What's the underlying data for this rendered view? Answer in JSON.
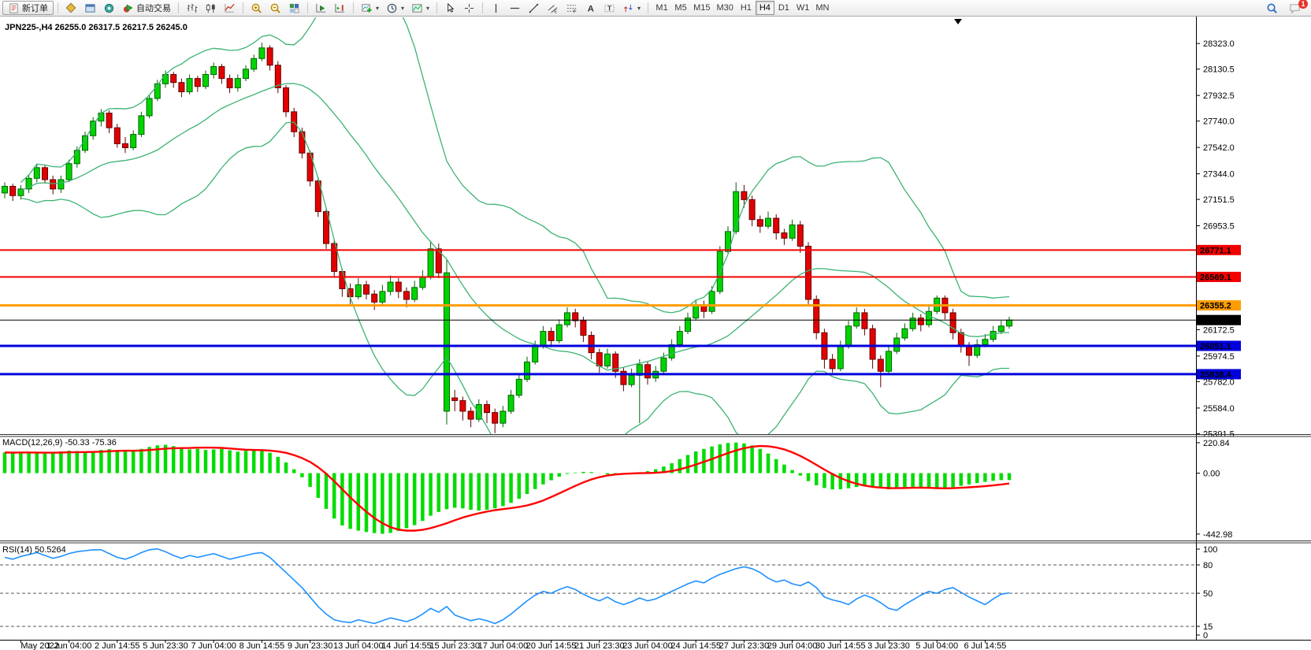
{
  "toolbar": {
    "new_order": {
      "label": "新订单"
    },
    "groups": [
      {
        "items": [
          {
            "icon": "market-watch"
          },
          {
            "icon": "terminal"
          },
          {
            "icon": "signal"
          },
          {
            "icon": "auto-trading",
            "label": "自动交易"
          }
        ]
      },
      {
        "items": [
          {
            "icon": "bar-chart"
          },
          {
            "icon": "candle-chart"
          },
          {
            "icon": "line-chart"
          }
        ]
      },
      {
        "items": [
          {
            "icon": "zoom-in"
          },
          {
            "icon": "zoom-out"
          },
          {
            "icon": "tile-windows"
          }
        ]
      },
      {
        "items": [
          {
            "icon": "auto-scroll"
          },
          {
            "icon": "chart-shift"
          }
        ]
      },
      {
        "items": [
          {
            "icon": "indicators",
            "dropdown": true
          },
          {
            "icon": "periods",
            "dropdown": true
          },
          {
            "icon": "templates",
            "dropdown": true
          }
        ]
      },
      {
        "items": [
          {
            "icon": "cursor"
          },
          {
            "icon": "crosshair"
          }
        ]
      },
      {
        "items": [
          {
            "icon": "vertical-line"
          },
          {
            "icon": "horizontal-line"
          },
          {
            "icon": "trend-line"
          },
          {
            "icon": "equidistant-channel"
          },
          {
            "icon": "fibonacci"
          },
          {
            "icon": "text"
          },
          {
            "icon": "text-label"
          },
          {
            "icon": "arrows",
            "dropdown": true
          }
        ]
      }
    ],
    "timeframes": [
      "M1",
      "M5",
      "M15",
      "M30",
      "H1",
      "H4",
      "D1",
      "W1",
      "MN"
    ],
    "active_timeframe": "H4",
    "notifications": {
      "count": "1"
    }
  },
  "chart": {
    "title": "JPN225-,H4  26255.0 26317.5 26217.5 26245.0"
  },
  "chart_data": {
    "type": "candlestick",
    "symbol": "JPN225-",
    "timeframe": "H4",
    "ohlc": {
      "open": 26255.0,
      "high": 26317.5,
      "low": 26217.5,
      "close": 26245.0
    },
    "x_labels": [
      "May 2022",
      "1 Jun 04:00",
      "2 Jun 14:55",
      "5 Jun 23:30",
      "7 Jun 04:00",
      "8 Jun 14:55",
      "9 Jun 23:30",
      "13 Jun 04:00",
      "14 Jun 14:55",
      "15 Jun 23:30",
      "17 Jun 04:00",
      "20 Jun 14:55",
      "21 Jun 23:30",
      "23 Jun 04:00",
      "24 Jun 14:55",
      "27 Jun 23:30",
      "29 Jun 04:00",
      "30 Jun 14:55",
      "3 Jul 23:30",
      "5 Jul 04:00",
      "6 Jul 14:55"
    ],
    "x_label_step": 6,
    "price_ticks": [
      28323.0,
      28130.5,
      27932.5,
      27740.0,
      27542.0,
      27344.0,
      27151.5,
      26953.5,
      26172.5,
      25974.5,
      25782.0,
      25584.0,
      25391.5
    ],
    "levels": [
      {
        "price": 26771.1,
        "color": "#f20000",
        "width": 2
      },
      {
        "price": 26569.1,
        "color": "#f20000",
        "width": 2
      },
      {
        "price": 26355.2,
        "color": "#ff9d00",
        "width": 3
      },
      {
        "price": 26245.0,
        "color": "#000000",
        "width": 1,
        "current": true
      },
      {
        "price": 26051.1,
        "color": "#0000dd",
        "width": 3
      },
      {
        "price": 25838.4,
        "color": "#0000dd",
        "width": 3
      }
    ],
    "candle_colors": {
      "up_fill": "#00d400",
      "up_border": "#006400",
      "down_fill": "#e30000",
      "down_border": "#600000"
    },
    "bollinger": {
      "period": 20,
      "deviation": 2,
      "color": "#3CB371"
    },
    "candles": [
      [
        27200,
        27280,
        27160,
        27250
      ],
      [
        27250,
        27270,
        27140,
        27180
      ],
      [
        27180,
        27260,
        27150,
        27230
      ],
      [
        27230,
        27340,
        27200,
        27310
      ],
      [
        27310,
        27420,
        27280,
        27390
      ],
      [
        27390,
        27410,
        27270,
        27300
      ],
      [
        27300,
        27330,
        27190,
        27230
      ],
      [
        27230,
        27330,
        27200,
        27300
      ],
      [
        27300,
        27450,
        27280,
        27420
      ],
      [
        27420,
        27550,
        27390,
        27520
      ],
      [
        27520,
        27660,
        27500,
        27630
      ],
      [
        27630,
        27770,
        27600,
        27740
      ],
      [
        27740,
        27830,
        27700,
        27800
      ],
      [
        27800,
        27820,
        27650,
        27690
      ],
      [
        27690,
        27720,
        27540,
        27570
      ],
      [
        27570,
        27620,
        27500,
        27540
      ],
      [
        27540,
        27670,
        27520,
        27640
      ],
      [
        27640,
        27810,
        27620,
        27780
      ],
      [
        27780,
        27940,
        27760,
        27910
      ],
      [
        27910,
        28050,
        27890,
        28020
      ],
      [
        28020,
        28120,
        27990,
        28090
      ],
      [
        28090,
        28110,
        27990,
        28030
      ],
      [
        28030,
        28060,
        27920,
        27960
      ],
      [
        27960,
        28090,
        27940,
        28060
      ],
      [
        28060,
        28080,
        27960,
        28000
      ],
      [
        28000,
        28120,
        27980,
        28090
      ],
      [
        28090,
        28180,
        28060,
        28150
      ],
      [
        28150,
        28170,
        28020,
        28060
      ],
      [
        28060,
        28090,
        27950,
        27990
      ],
      [
        27990,
        28090,
        27960,
        28060
      ],
      [
        28060,
        28160,
        28040,
        28130
      ],
      [
        28130,
        28240,
        28110,
        28210
      ],
      [
        28210,
        28330,
        28190,
        28290
      ],
      [
        28290,
        28310,
        28120,
        28160
      ],
      [
        28160,
        28190,
        27950,
        27990
      ],
      [
        27990,
        28010,
        27770,
        27810
      ],
      [
        27810,
        27840,
        27620,
        27660
      ],
      [
        27660,
        27690,
        27460,
        27500
      ],
      [
        27500,
        27520,
        27250,
        27290
      ],
      [
        27290,
        27320,
        27020,
        27060
      ],
      [
        27060,
        27090,
        26780,
        26820
      ],
      [
        26820,
        26850,
        26570,
        26610
      ],
      [
        26610,
        26630,
        26420,
        26480
      ],
      [
        26480,
        26520,
        26360,
        26420
      ],
      [
        26420,
        26560,
        26400,
        26510
      ],
      [
        26510,
        26540,
        26400,
        26440
      ],
      [
        26440,
        26470,
        26320,
        26380
      ],
      [
        26380,
        26510,
        26360,
        26460
      ],
      [
        26460,
        26580,
        26430,
        26530
      ],
      [
        26530,
        26560,
        26410,
        26460
      ],
      [
        26460,
        26490,
        26340,
        26400
      ],
      [
        26400,
        26540,
        26380,
        26490
      ],
      [
        26490,
        26620,
        26470,
        26570
      ],
      [
        26570,
        26840,
        26550,
        26780
      ],
      [
        26780,
        26820,
        26560,
        26600
      ],
      [
        25560,
        26700,
        25460,
        26600
      ],
      [
        25660,
        25720,
        25560,
        25640
      ],
      [
        25640,
        25670,
        25490,
        25560
      ],
      [
        25560,
        25590,
        25440,
        25500
      ],
      [
        25500,
        25650,
        25480,
        25610
      ],
      [
        25610,
        25640,
        25470,
        25550
      ],
      [
        25550,
        25580,
        25395,
        25470
      ],
      [
        25470,
        25600,
        25440,
        25560
      ],
      [
        25560,
        25720,
        25540,
        25680
      ],
      [
        25680,
        25840,
        25660,
        25800
      ],
      [
        25800,
        25970,
        25780,
        25930
      ],
      [
        25930,
        26090,
        25910,
        26050
      ],
      [
        26050,
        26200,
        26030,
        26160
      ],
      [
        26160,
        26190,
        26040,
        26090
      ],
      [
        26090,
        26250,
        26070,
        26210
      ],
      [
        26210,
        26340,
        26190,
        26300
      ],
      [
        26300,
        26330,
        26190,
        26240
      ],
      [
        26240,
        26270,
        26080,
        26130
      ],
      [
        26130,
        26160,
        25950,
        26000
      ],
      [
        26000,
        26030,
        25850,
        25900
      ],
      [
        25900,
        26030,
        25880,
        25990
      ],
      [
        25990,
        26010,
        25810,
        25860
      ],
      [
        25860,
        25890,
        25710,
        25760
      ],
      [
        25760,
        25880,
        25740,
        25830
      ],
      [
        25830,
        25950,
        25470,
        25910
      ],
      [
        25910,
        25930,
        25760,
        25810
      ],
      [
        25810,
        25900,
        25780,
        25860
      ],
      [
        25860,
        26000,
        25840,
        25960
      ],
      [
        25960,
        26100,
        25940,
        26060
      ],
      [
        26060,
        26200,
        26040,
        26160
      ],
      [
        26160,
        26300,
        26140,
        26260
      ],
      [
        26260,
        26400,
        26240,
        26360
      ],
      [
        26360,
        26390,
        26260,
        26310
      ],
      [
        26310,
        26500,
        26290,
        26460
      ],
      [
        26460,
        26800,
        26440,
        26760
      ],
      [
        26760,
        26950,
        26740,
        26910
      ],
      [
        26910,
        27280,
        26890,
        27210
      ],
      [
        27210,
        27260,
        27090,
        27150
      ],
      [
        27150,
        27180,
        26950,
        27000
      ],
      [
        27000,
        27030,
        26900,
        26950
      ],
      [
        26950,
        27060,
        26930,
        27010
      ],
      [
        27010,
        27040,
        26850,
        26900
      ],
      [
        26900,
        26930,
        26810,
        26860
      ],
      [
        26860,
        27000,
        26840,
        26960
      ],
      [
        26960,
        26990,
        26750,
        26800
      ],
      [
        26800,
        26830,
        26350,
        26400
      ],
      [
        26400,
        26430,
        26100,
        26150
      ],
      [
        26150,
        26180,
        25880,
        25950
      ],
      [
        25950,
        25990,
        25850,
        25880
      ],
      [
        25880,
        26090,
        25860,
        26050
      ],
      [
        26050,
        26240,
        26030,
        26200
      ],
      [
        26200,
        26340,
        26180,
        26300
      ],
      [
        26300,
        26330,
        26130,
        26180
      ],
      [
        26180,
        26210,
        25880,
        25950
      ],
      [
        25950,
        25980,
        25740,
        25860
      ],
      [
        25860,
        26050,
        25840,
        26010
      ],
      [
        26010,
        26150,
        25990,
        26110
      ],
      [
        26110,
        26220,
        26090,
        26180
      ],
      [
        26180,
        26300,
        26160,
        26260
      ],
      [
        26260,
        26290,
        26160,
        26210
      ],
      [
        26210,
        26350,
        26190,
        26310
      ],
      [
        26310,
        26430,
        26290,
        26410
      ],
      [
        26410,
        26430,
        26250,
        26300
      ],
      [
        26300,
        26330,
        26100,
        26150
      ],
      [
        26150,
        26180,
        26000,
        26050
      ],
      [
        26050,
        26080,
        25900,
        25980
      ],
      [
        25980,
        26100,
        25960,
        26060
      ],
      [
        26060,
        26140,
        26040,
        26100
      ],
      [
        26100,
        26200,
        26080,
        26160
      ],
      [
        26160,
        26240,
        26140,
        26200
      ],
      [
        26200,
        26270,
        26180,
        26245
      ]
    ],
    "macd": {
      "label": "MACD(12,26,9)",
      "values_text": "-50.33 -75.36",
      "main": -50.33,
      "signal": -75.36,
      "signal_period": 9,
      "axis": [
        220.84,
        0.0,
        -442.98
      ],
      "hist_color": "#00dc00",
      "signal_color": "#ff0000",
      "histogram": [
        150,
        148,
        152,
        150,
        146,
        142,
        150,
        158,
        163,
        160,
        156,
        160,
        168,
        174,
        166,
        156,
        162,
        176,
        190,
        202,
        206,
        196,
        182,
        172,
        176,
        168,
        172,
        176,
        166,
        156,
        162,
        166,
        160,
        148,
        118,
        78,
        28,
        -30,
        -100,
        -180,
        -260,
        -330,
        -380,
        -405,
        -418,
        -428,
        -436,
        -441,
        -434,
        -420,
        -400,
        -378,
        -348,
        -310,
        -282,
        -262,
        -252,
        -256,
        -266,
        -272,
        -266,
        -256,
        -240,
        -216,
        -186,
        -152,
        -116,
        -82,
        -52,
        -26,
        -6,
        4,
        9,
        7,
        -1,
        -9,
        -13,
        -9,
        -1,
        6,
        14,
        28,
        48,
        72,
        102,
        132,
        158,
        176,
        194,
        209,
        219,
        222,
        216,
        201,
        176,
        142,
        102,
        62,
        22,
        -18,
        -58,
        -88,
        -108,
        -118,
        -117,
        -110,
        -101,
        -96,
        -101,
        -111,
        -118,
        -114,
        -107,
        -100,
        -106,
        -112,
        -116,
        -110,
        -102,
        -92,
        -82,
        -72,
        -63,
        -56,
        -51,
        -50.33
      ]
    },
    "rsi": {
      "label": "RSI(14)",
      "value": 50.5264,
      "levels": [
        80,
        50,
        15
      ],
      "axis_labels": [
        100,
        80,
        50,
        15,
        0
      ],
      "color": "#1E90FF",
      "values": [
        88,
        86,
        89,
        91,
        93,
        90,
        87,
        89,
        92,
        94,
        95,
        96,
        96,
        92,
        88,
        86,
        89,
        93,
        96,
        97,
        94,
        90,
        87,
        90,
        88,
        90,
        92,
        89,
        86,
        88,
        90,
        92,
        93,
        88,
        80,
        72,
        64,
        56,
        46,
        36,
        28,
        22,
        20,
        19,
        22,
        20,
        18,
        21,
        24,
        22,
        20,
        23,
        28,
        34,
        30,
        36,
        27,
        24,
        21,
        23,
        21,
        18,
        22,
        28,
        35,
        42,
        48,
        52,
        50,
        54,
        57,
        54,
        49,
        45,
        42,
        46,
        41,
        38,
        41,
        45,
        42,
        44,
        48,
        52,
        56,
        60,
        63,
        61,
        66,
        70,
        73,
        76,
        78,
        76,
        72,
        66,
        62,
        64,
        60,
        58,
        62,
        56,
        46,
        43,
        41,
        38,
        44,
        48,
        45,
        40,
        34,
        32,
        38,
        43,
        48,
        52,
        50,
        54,
        56,
        51,
        46,
        42,
        38,
        44,
        49,
        50.53
      ]
    }
  }
}
